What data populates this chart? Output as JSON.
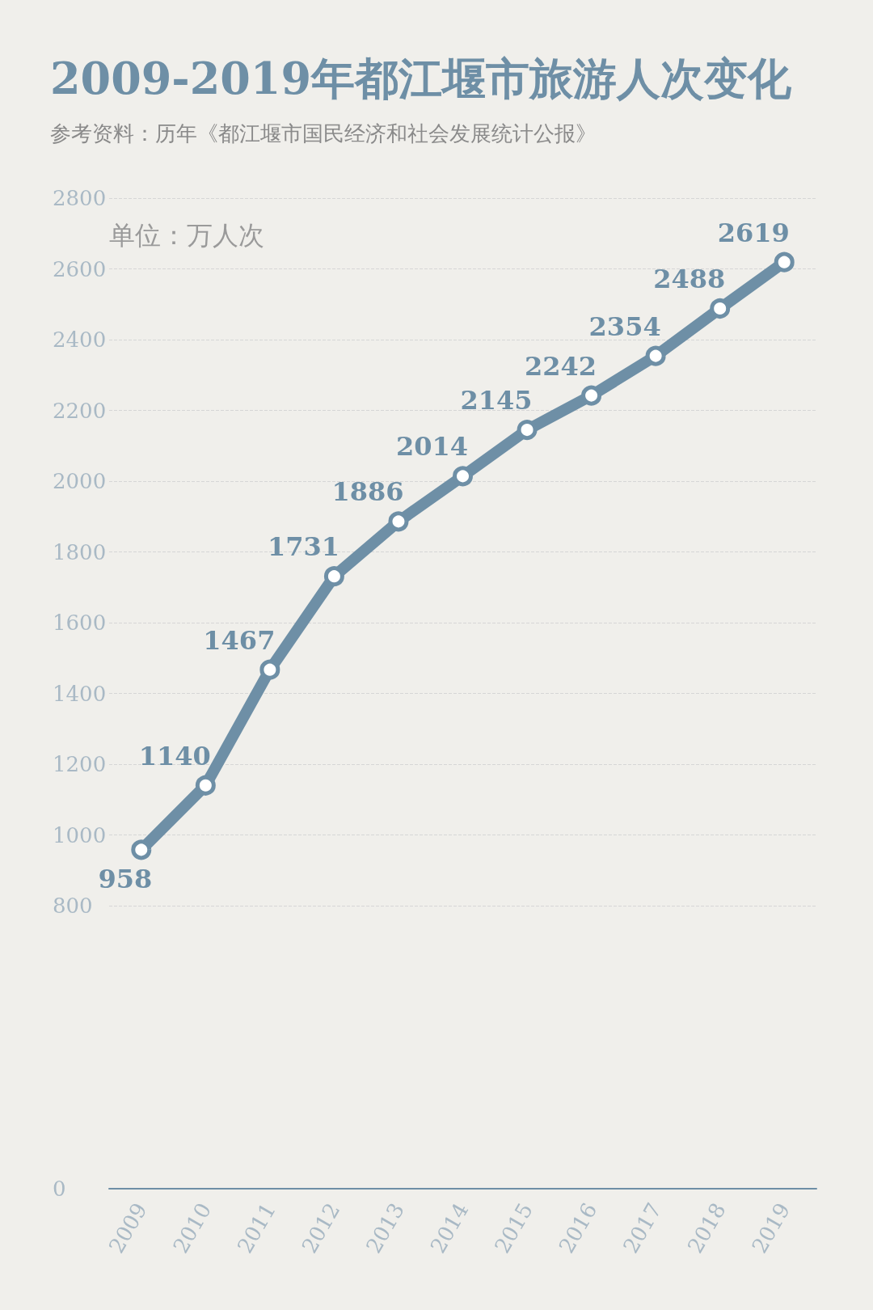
{
  "chart_data": {
    "type": "line",
    "title": "2009-2019年都江堰市旅游人次变化",
    "subtitle": "参考资料：历年《都江堰市国民经济和社会发展统计公报》",
    "annotations": [
      "单位：万人次"
    ],
    "categories": [
      "2009",
      "2010",
      "2011",
      "2012",
      "2013",
      "2014",
      "2015",
      "2016",
      "2017",
      "2018",
      "2019"
    ],
    "series": [
      {
        "color": "#6e8fa6",
        "values": [
          958,
          1140,
          1467,
          1731,
          1886,
          2014,
          2145,
          2242,
          2354,
          2488,
          2619
        ]
      }
    ],
    "ylim": [
      0,
      2800
    ],
    "yticks": [
      0,
      800,
      1000,
      1200,
      1400,
      1600,
      1800,
      2000,
      2200,
      2400,
      2600,
      2800
    ],
    "grid": "y",
    "marker": "circle",
    "line_style": "solid",
    "data_labels": true
  }
}
